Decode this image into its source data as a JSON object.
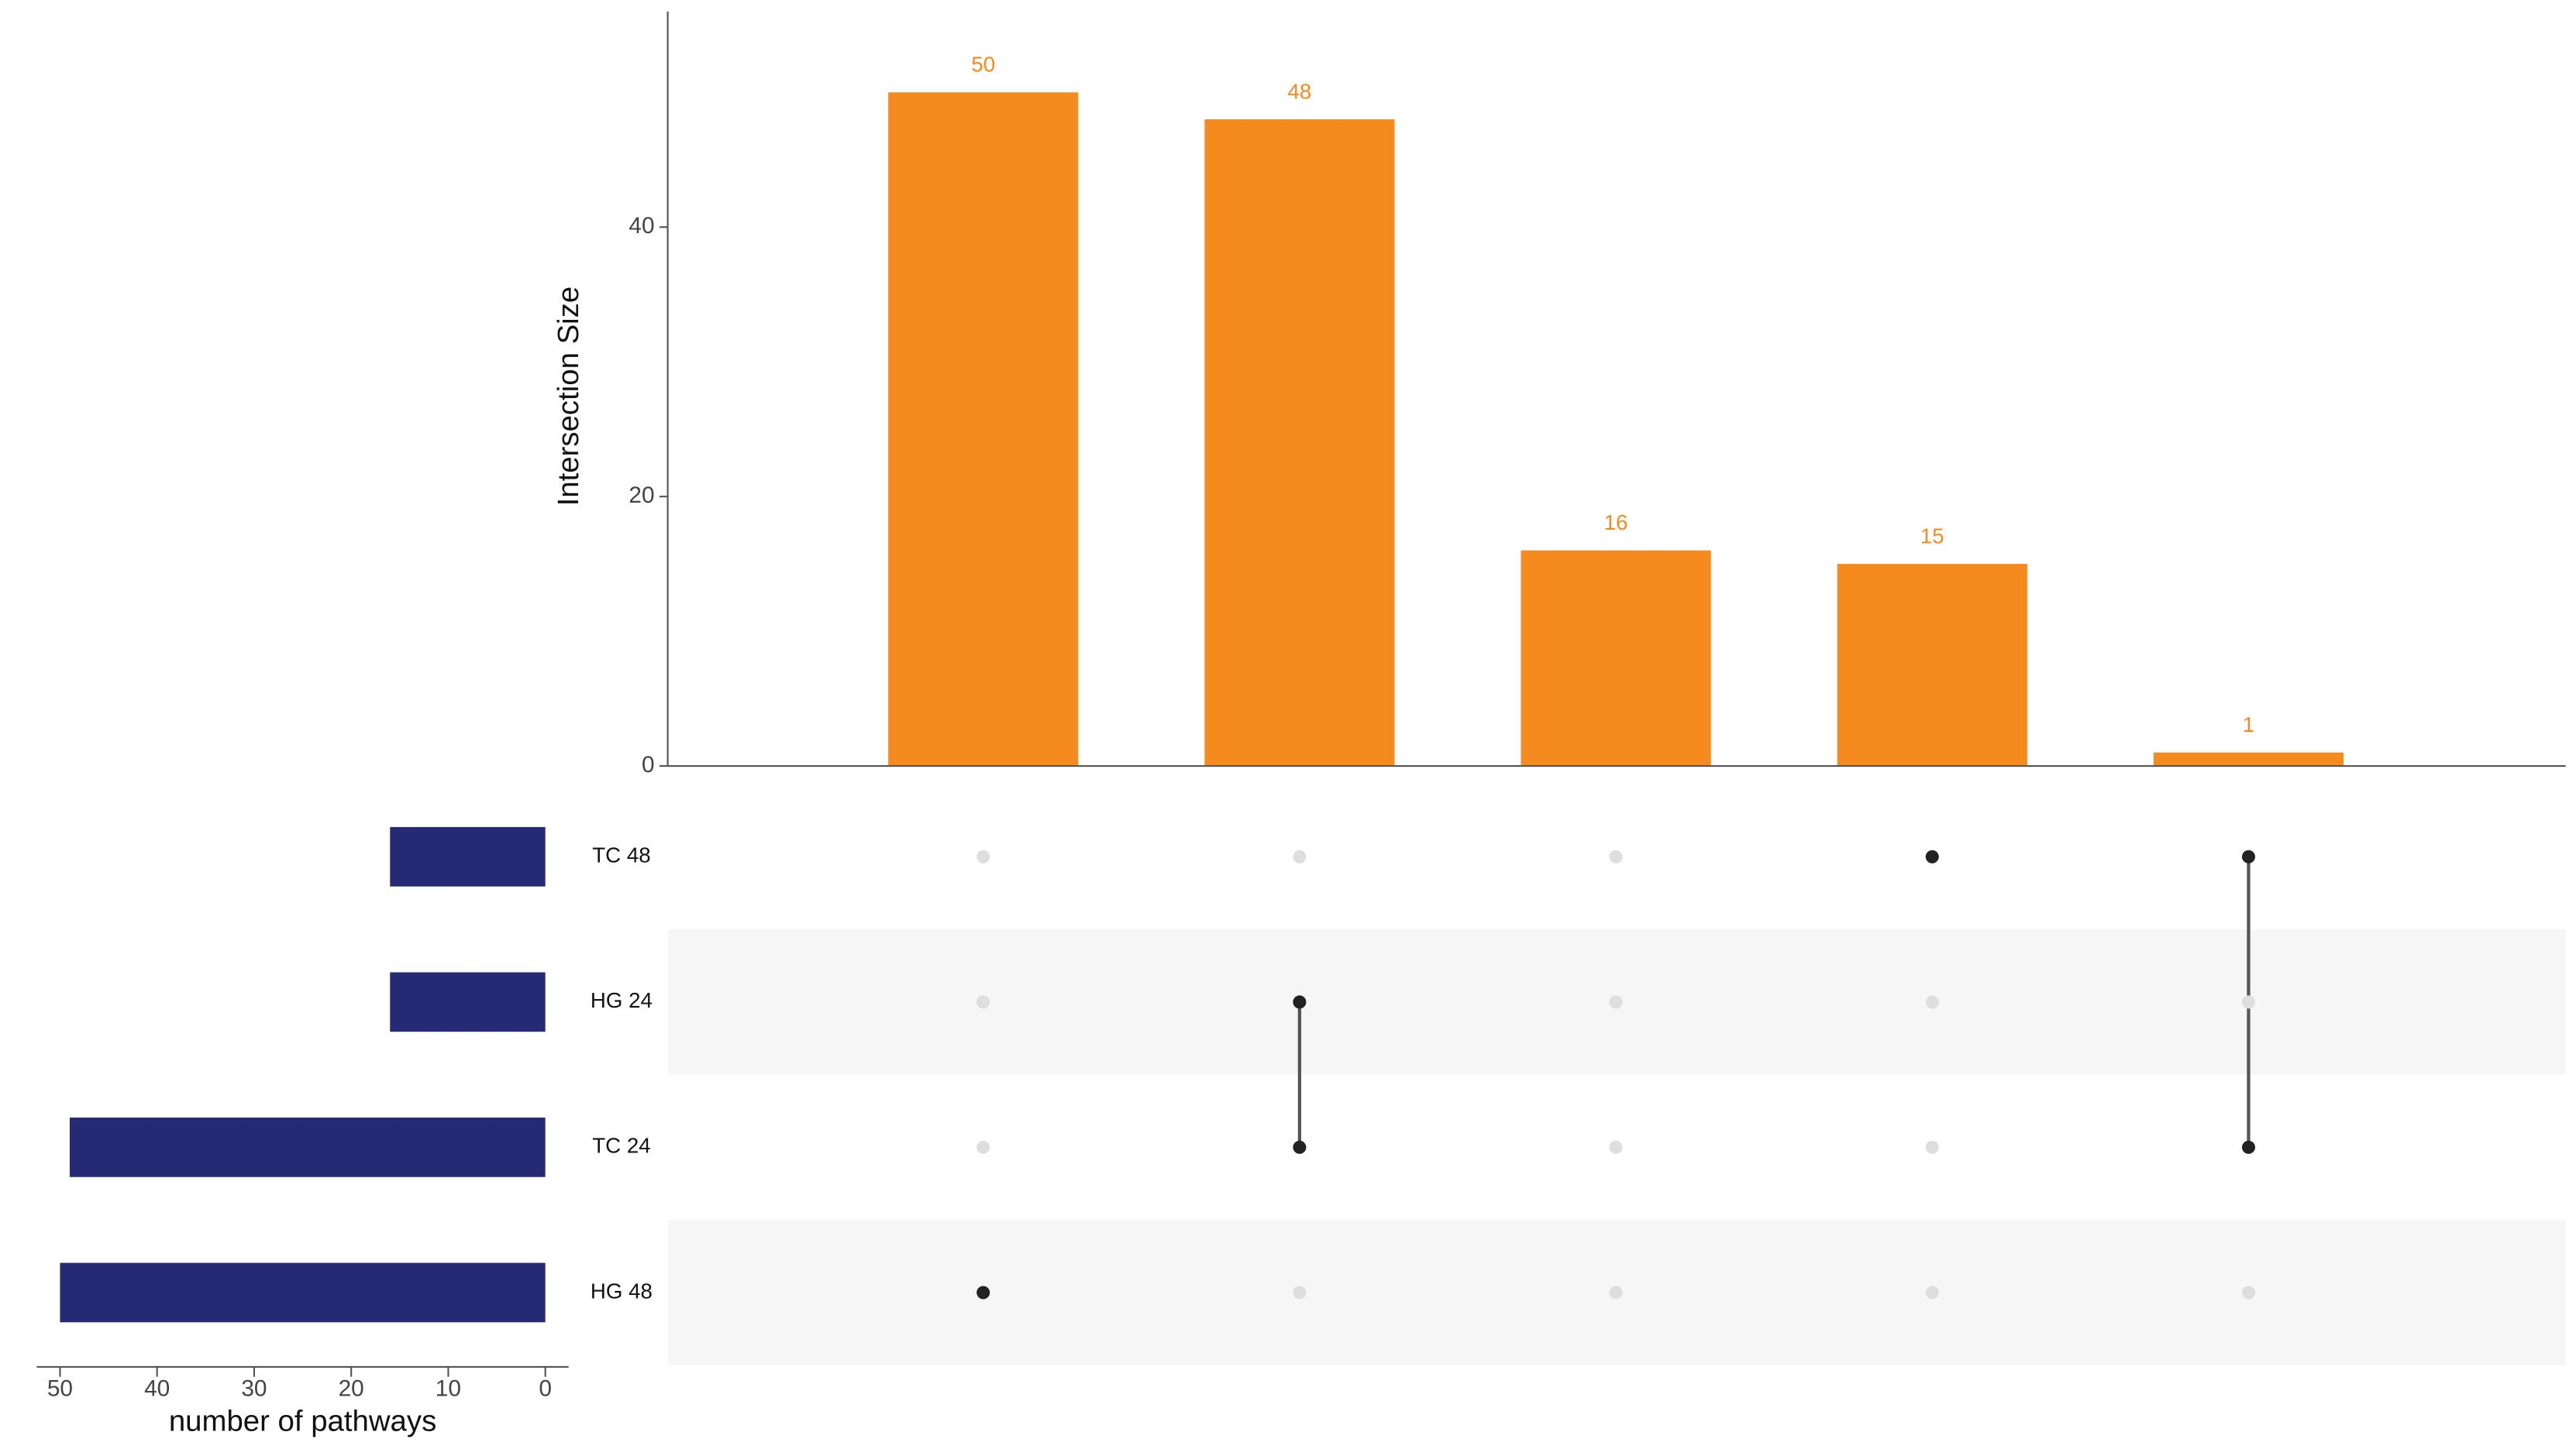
{
  "chart_data": {
    "type": "upset",
    "y_label": "Intersection Size",
    "x_label": "number of pathways",
    "values": [
      50,
      48,
      16,
      15,
      1
    ],
    "bar_color": "#f58b1f",
    "ylim": [
      0,
      56
    ],
    "yticks": [
      0,
      20,
      40
    ],
    "sets": [
      "TC 48",
      "HG 24",
      "TC 24",
      "HG 48"
    ],
    "set_sizes": [
      16,
      16,
      49,
      50
    ],
    "set_color": "#262a75",
    "xlim": [
      -2.4,
      52.4
    ],
    "xticks": [
      0,
      10,
      20,
      30,
      40,
      50
    ],
    "x_reversed": true,
    "matrix": [
      [
        0,
        0,
        0,
        1,
        1
      ],
      [
        0,
        1,
        0,
        0,
        0
      ],
      [
        0,
        1,
        0,
        0,
        1
      ],
      [
        1,
        0,
        0,
        0,
        0
      ]
    ]
  }
}
